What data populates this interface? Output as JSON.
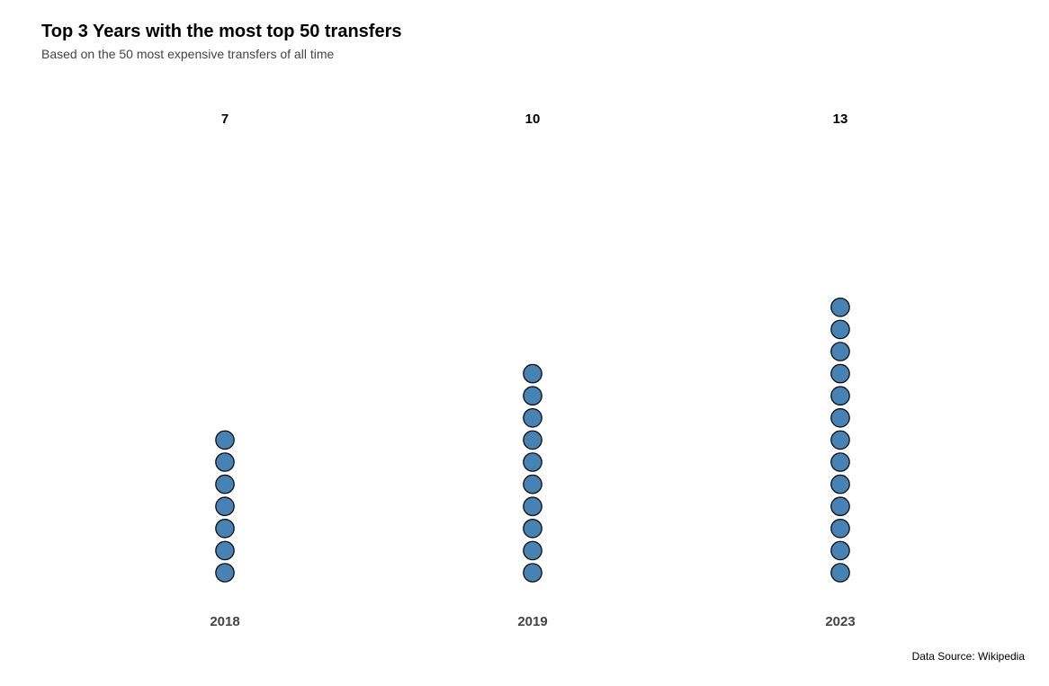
{
  "chart_data": {
    "type": "dot",
    "title": "Top 3 Years with the most top 50 transfers",
    "subtitle": "Based on the 50 most expensive transfers of all time",
    "caption": "Data Source: Wikipedia",
    "categories": [
      "2018",
      "2019",
      "2023"
    ],
    "values": [
      7,
      10,
      13
    ],
    "count_labels": [
      "7",
      "10",
      "13"
    ],
    "grid": false,
    "axes_visible": false,
    "dot_fill": "#4682B4",
    "dot_stroke": "#000000"
  }
}
